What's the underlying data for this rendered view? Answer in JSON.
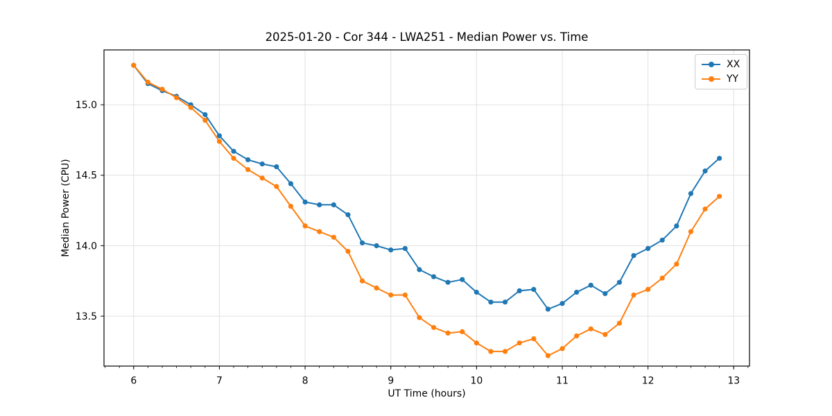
{
  "chart_data": {
    "type": "line",
    "title": "2025-01-20 - Cor 344 - LWA251 - Median Power vs. Time",
    "xlabel": "UT Time (hours)",
    "ylabel": "Median Power (CPU)",
    "x": [
      6.0,
      6.1667,
      6.3333,
      6.5,
      6.6667,
      6.8333,
      7.0,
      7.1667,
      7.3333,
      7.5,
      7.6667,
      7.8333,
      8.0,
      8.1667,
      8.3333,
      8.5,
      8.6667,
      8.8333,
      9.0,
      9.1667,
      9.3333,
      9.5,
      9.6667,
      9.8333,
      10.0,
      10.1667,
      10.3333,
      10.5,
      10.6667,
      10.8333,
      11.0,
      11.1667,
      11.3333,
      11.5,
      11.6667,
      11.8333,
      12.0,
      12.1667,
      12.3333,
      12.5,
      12.6667,
      12.8333
    ],
    "series": [
      {
        "name": "XX",
        "color": "#1f77b4",
        "values": [
          15.28,
          15.15,
          15.1,
          15.06,
          15.0,
          14.93,
          14.78,
          14.67,
          14.61,
          14.58,
          14.56,
          14.44,
          14.31,
          14.29,
          14.29,
          14.22,
          14.02,
          14.0,
          13.97,
          13.98,
          13.83,
          13.78,
          13.74,
          13.76,
          13.67,
          13.6,
          13.6,
          13.68,
          13.69,
          13.55,
          13.59,
          13.67,
          13.72,
          13.66,
          13.74,
          13.93,
          13.98,
          14.04,
          14.14,
          14.37,
          14.53,
          14.62
        ]
      },
      {
        "name": "YY",
        "color": "#ff7f0e",
        "values": [
          15.28,
          15.16,
          15.11,
          15.05,
          14.98,
          14.89,
          14.74,
          14.62,
          14.54,
          14.48,
          14.42,
          14.28,
          14.14,
          14.1,
          14.06,
          13.96,
          13.75,
          13.7,
          13.65,
          13.65,
          13.49,
          13.42,
          13.38,
          13.39,
          13.31,
          13.25,
          13.25,
          13.31,
          13.34,
          13.22,
          13.27,
          13.36,
          13.41,
          13.37,
          13.45,
          13.65,
          13.69,
          13.77,
          13.87,
          14.1,
          14.26,
          14.35
        ]
      }
    ],
    "xlim": [
      5.654,
      13.184
    ],
    "ylim": [
      13.146,
      15.389
    ],
    "xticks": [
      6,
      7,
      8,
      9,
      10,
      11,
      12,
      13
    ],
    "xtick_labels": [
      "6",
      "7",
      "8",
      "9",
      "10",
      "11",
      "12",
      "13"
    ],
    "yticks": [
      13.5,
      14.0,
      14.5,
      15.0
    ],
    "ytick_labels": [
      "13.5",
      "14.0",
      "14.5",
      "15.0"
    ],
    "x_minor_step": 0.166667,
    "grid": true,
    "legend_position": "upper right",
    "colors": {
      "grid": "#e0e0e0",
      "spine": "#000000",
      "background": "#ffffff",
      "text": "#000000"
    }
  }
}
